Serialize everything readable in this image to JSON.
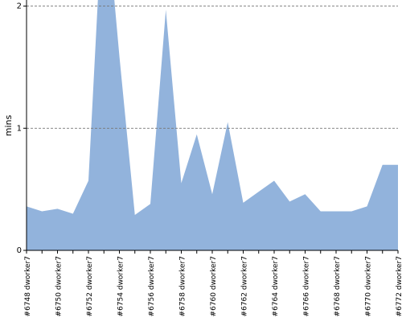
{
  "chart_data": {
    "type": "area",
    "y_label": "mins",
    "categories": [
      "#6748 dworker7",
      null,
      "#6750 dworker7",
      null,
      "#6752 dworker7",
      null,
      "#6754 dworker7",
      null,
      "#6756 dworker7",
      null,
      "#6758 dworker7",
      null,
      "#6760 dworker7",
      null,
      "#6762 dworker7",
      null,
      "#6764 dworker7",
      null,
      "#6766 dworker7",
      null,
      "#6768 dworker7",
      null,
      "#6770 dworker7",
      null,
      "#6772 dworker7"
    ],
    "values": [
      0.36,
      0.32,
      0.34,
      0.3,
      0.57,
      3.0,
      1.59,
      0.29,
      0.38,
      1.97,
      0.55,
      0.95,
      0.46,
      1.05,
      0.39,
      0.48,
      0.57,
      0.4,
      0.46,
      0.32,
      0.32,
      0.32,
      0.36,
      0.7,
      0.7
    ],
    "color": "#92b3dc",
    "ylim": [
      0,
      2.05
    ],
    "yticks": [
      0,
      1,
      2
    ],
    "grid": true
  }
}
